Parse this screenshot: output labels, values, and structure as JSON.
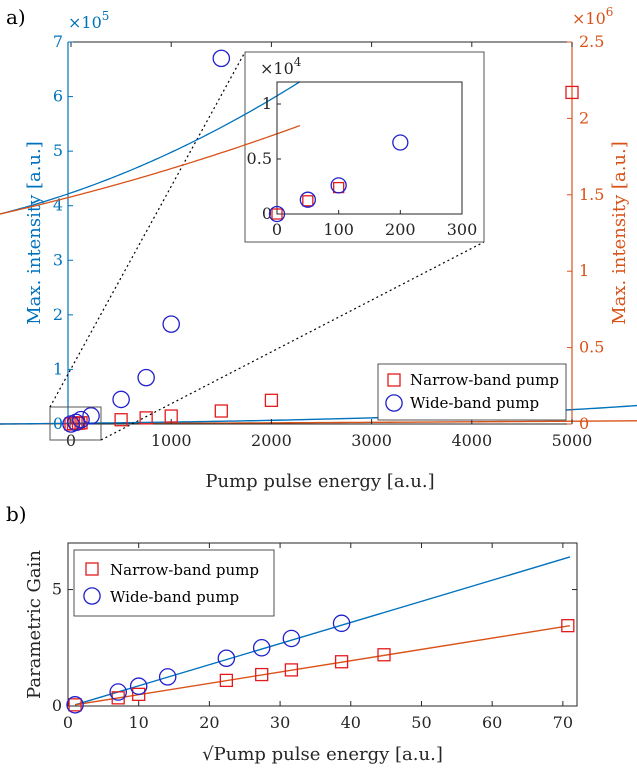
{
  "colors": {
    "blue": "#0072BD",
    "orange": "#D95319",
    "red": "#E31A1C",
    "blueMarker": "#2020CC",
    "axis": "#262626"
  },
  "chart_data": [
    {
      "panel_label": "a)",
      "type": "scatter",
      "xlabel": "Pump pulse energy [a.u.]",
      "xlim": [
        -30,
        5000
      ],
      "xticks": [
        0,
        1000,
        2000,
        3000,
        4000,
        5000
      ],
      "y_left": {
        "label": "Max. intensity [a.u.]",
        "lim": [
          0,
          700000
        ],
        "ticks": [
          0,
          100000,
          200000,
          300000,
          400000,
          500000,
          600000,
          700000
        ],
        "tick_labels": [
          "0",
          "1",
          "2",
          "3",
          "4",
          "5",
          "6",
          "7"
        ],
        "exponent_label": "×10",
        "exponent_power": "5",
        "color": "blue"
      },
      "y_right": {
        "label": "Max. intensity [a.u.]",
        "lim": [
          0,
          2500000
        ],
        "ticks": [
          0,
          500000,
          1000000,
          1500000,
          2000000,
          2500000
        ],
        "tick_labels": [
          "0",
          "0.5",
          "1",
          "1.5",
          "2",
          "2.5"
        ],
        "exponent_label": "×10",
        "exponent_power": "6",
        "color": "orange"
      },
      "series": [
        {
          "name": "Narrow-band pump",
          "marker": "square",
          "axis": "right",
          "x": [
            0,
            25,
            50,
            75,
            100,
            500,
            750,
            1000,
            1500,
            2000,
            5000
          ],
          "y": [
            0,
            2000,
            4000,
            6000,
            8000,
            28000,
            40000,
            52000,
            85000,
            155000,
            2170000
          ]
        },
        {
          "name": "Wide-band pump",
          "marker": "circle",
          "axis": "left",
          "x": [
            0,
            50,
            100,
            200,
            500,
            750,
            1000,
            1500
          ],
          "y": [
            0,
            3000,
            8000,
            15000,
            45000,
            85000,
            183000,
            670000
          ]
        }
      ],
      "legend": "lower-right",
      "inset": {
        "xlim": [
          0,
          300
        ],
        "ylim": [
          0,
          12000
        ],
        "xticks": [
          0,
          100,
          200,
          300
        ],
        "yticks": [
          0,
          5000,
          10000
        ],
        "ytick_labels": [
          "0",
          "0.5",
          "1"
        ],
        "exponent_label": "×10",
        "exponent_power": "4",
        "narrow": {
          "x": [
            0,
            50,
            100
          ],
          "y": [
            0,
            1200,
            2400
          ]
        },
        "wide": {
          "x": [
            0,
            50,
            100,
            200
          ],
          "y": [
            0,
            1300,
            2600,
            6500
          ]
        }
      }
    },
    {
      "panel_label": "b)",
      "type": "scatter",
      "xlabel": "√Pump pulse energy [a.u.]",
      "ylabel": "Parametric Gain",
      "xlim": [
        0,
        72
      ],
      "ylim": [
        0,
        7
      ],
      "xticks": [
        0,
        10,
        20,
        30,
        40,
        50,
        60,
        70
      ],
      "yticks": [
        0,
        5
      ],
      "series": [
        {
          "name": "Narrow-band pump",
          "marker": "square",
          "x": [
            1,
            7.1,
            10,
            22.4,
            27.4,
            31.6,
            38.7,
            44.7,
            70.7
          ],
          "y": [
            0.05,
            0.35,
            0.5,
            1.1,
            1.35,
            1.55,
            1.9,
            2.2,
            3.45
          ]
        },
        {
          "name": "Wide-band pump",
          "marker": "circle",
          "x": [
            1,
            7.1,
            10,
            14.1,
            22.4,
            27.4,
            31.6,
            38.7
          ],
          "y": [
            0.05,
            0.6,
            0.85,
            1.25,
            2.05,
            2.5,
            2.9,
            3.55
          ]
        }
      ],
      "fit_lines": [
        {
          "series": "Wide-band pump",
          "x": [
            1,
            71
          ],
          "y": [
            0.05,
            6.4
          ]
        },
        {
          "series": "Narrow-band pump",
          "x": [
            1,
            71
          ],
          "y": [
            0.05,
            3.45
          ]
        }
      ],
      "legend": "top-left"
    }
  ]
}
